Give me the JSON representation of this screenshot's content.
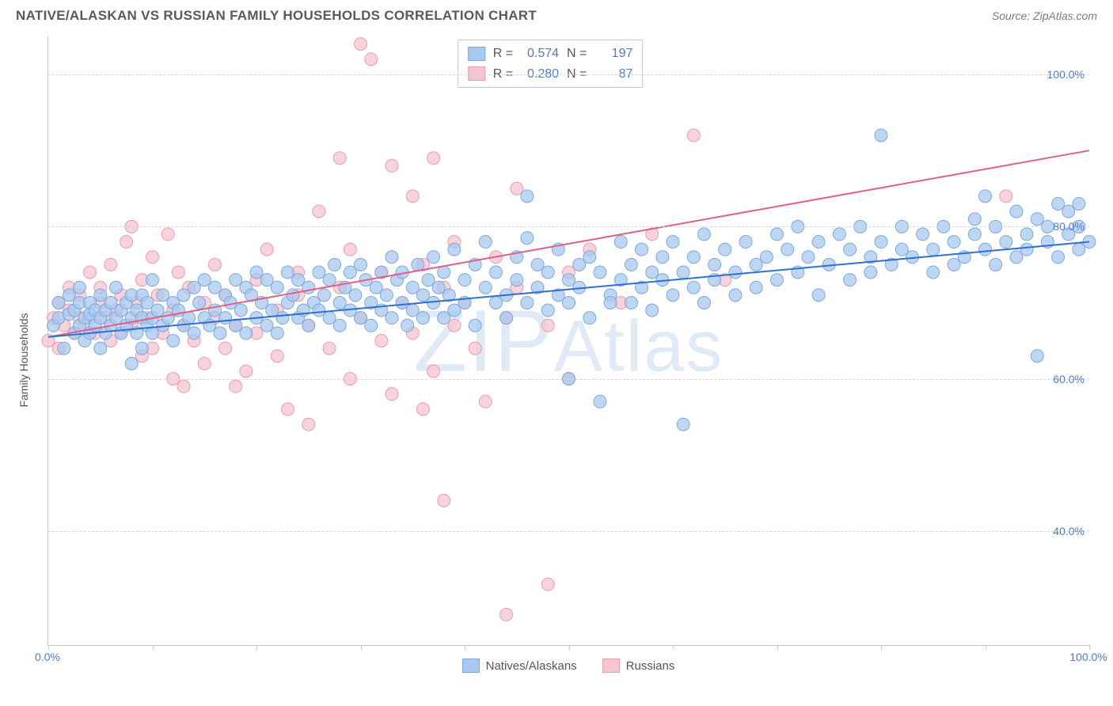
{
  "header": {
    "title": "NATIVE/ALASKAN VS RUSSIAN FAMILY HOUSEHOLDS CORRELATION CHART",
    "source": "Source: ZipAtlas.com"
  },
  "watermark": "ZIPAtlas",
  "axes": {
    "ylabel": "Family Households",
    "xmin": 0,
    "xmax": 100,
    "ymin": 25,
    "ymax": 105,
    "xticks": [
      0,
      10,
      20,
      30,
      40,
      50,
      60,
      70,
      80,
      90,
      100
    ],
    "xtick_labels": {
      "0": "0.0%",
      "100": "100.0%"
    },
    "yticks": [
      40,
      60,
      80,
      100
    ],
    "ytick_labels": {
      "40": "40.0%",
      "60": "60.0%",
      "80": "80.0%",
      "100": "100.0%"
    }
  },
  "series": {
    "blue": {
      "label": "Natives/Alaskans",
      "fill": "#a7c8f0",
      "stroke": "#7fa8d9",
      "line_color": "#2f6fd0",
      "R": "0.574",
      "N": "197",
      "trend": {
        "x1": 0,
        "y1": 65.5,
        "x2": 100,
        "y2": 78.0
      },
      "points": [
        [
          0.5,
          67
        ],
        [
          1,
          68
        ],
        [
          1,
          70
        ],
        [
          1.5,
          64
        ],
        [
          2,
          68.5
        ],
        [
          2,
          71
        ],
        [
          2.5,
          66
        ],
        [
          2.5,
          69
        ],
        [
          3,
          67
        ],
        [
          3,
          72
        ],
        [
          3,
          70
        ],
        [
          3.5,
          65
        ],
        [
          3.5,
          68
        ],
        [
          4,
          68.5
        ],
        [
          4,
          66
        ],
        [
          4,
          70
        ],
        [
          4.5,
          69
        ],
        [
          4.5,
          67
        ],
        [
          5,
          71
        ],
        [
          5,
          64
        ],
        [
          5,
          68
        ],
        [
          5.5,
          69
        ],
        [
          5.5,
          66
        ],
        [
          6,
          67
        ],
        [
          6,
          70
        ],
        [
          6.5,
          68
        ],
        [
          6.5,
          72
        ],
        [
          7,
          69
        ],
        [
          7,
          66
        ],
        [
          7.5,
          70
        ],
        [
          7.5,
          67
        ],
        [
          8,
          68
        ],
        [
          8,
          71
        ],
        [
          8,
          62
        ],
        [
          8.5,
          69
        ],
        [
          8.5,
          66
        ],
        [
          9,
          68
        ],
        [
          9,
          71
        ],
        [
          9,
          64
        ],
        [
          9.5,
          67
        ],
        [
          9.5,
          70
        ],
        [
          10,
          68
        ],
        [
          10,
          73
        ],
        [
          10,
          66
        ],
        [
          10.5,
          69
        ],
        [
          11,
          67
        ],
        [
          11,
          71
        ],
        [
          11.5,
          68
        ],
        [
          12,
          70
        ],
        [
          12,
          65
        ],
        [
          12.5,
          69
        ],
        [
          13,
          71
        ],
        [
          13,
          67
        ],
        [
          13.5,
          68
        ],
        [
          14,
          72
        ],
        [
          14,
          66
        ],
        [
          14.5,
          70
        ],
        [
          15,
          68
        ],
        [
          15,
          73
        ],
        [
          15.5,
          67
        ],
        [
          16,
          69
        ],
        [
          16,
          72
        ],
        [
          16.5,
          66
        ],
        [
          17,
          71
        ],
        [
          17,
          68
        ],
        [
          17.5,
          70
        ],
        [
          18,
          73
        ],
        [
          18,
          67
        ],
        [
          18.5,
          69
        ],
        [
          19,
          72
        ],
        [
          19,
          66
        ],
        [
          19.5,
          71
        ],
        [
          20,
          68
        ],
        [
          20,
          74
        ],
        [
          20.5,
          70
        ],
        [
          21,
          67
        ],
        [
          21,
          73
        ],
        [
          21.5,
          69
        ],
        [
          22,
          72
        ],
        [
          22,
          66
        ],
        [
          22.5,
          68
        ],
        [
          23,
          74
        ],
        [
          23,
          70
        ],
        [
          23.5,
          71
        ],
        [
          24,
          68
        ],
        [
          24,
          73
        ],
        [
          24.5,
          69
        ],
        [
          25,
          72
        ],
        [
          25,
          67
        ],
        [
          25.5,
          70
        ],
        [
          26,
          74
        ],
        [
          26,
          69
        ],
        [
          26.5,
          71
        ],
        [
          27,
          68
        ],
        [
          27,
          73
        ],
        [
          27.5,
          75
        ],
        [
          28,
          70
        ],
        [
          28,
          67
        ],
        [
          28.5,
          72
        ],
        [
          29,
          69
        ],
        [
          29,
          74
        ],
        [
          29.5,
          71
        ],
        [
          30,
          68
        ],
        [
          30,
          75
        ],
        [
          30.5,
          73
        ],
        [
          31,
          70
        ],
        [
          31,
          67
        ],
        [
          31.5,
          72
        ],
        [
          32,
          74
        ],
        [
          32,
          69
        ],
        [
          32.5,
          71
        ],
        [
          33,
          68
        ],
        [
          33,
          76
        ],
        [
          33.5,
          73
        ],
        [
          34,
          70
        ],
        [
          34,
          74
        ],
        [
          34.5,
          67
        ],
        [
          35,
          72
        ],
        [
          35,
          69
        ],
        [
          35.5,
          75
        ],
        [
          36,
          71
        ],
        [
          36,
          68
        ],
        [
          36.5,
          73
        ],
        [
          37,
          70
        ],
        [
          37,
          76
        ],
        [
          37.5,
          72
        ],
        [
          38,
          68
        ],
        [
          38,
          74
        ],
        [
          38.5,
          71
        ],
        [
          39,
          77
        ],
        [
          39,
          69
        ],
        [
          40,
          73
        ],
        [
          40,
          70
        ],
        [
          41,
          75
        ],
        [
          41,
          67
        ],
        [
          42,
          72
        ],
        [
          42,
          78
        ],
        [
          43,
          70
        ],
        [
          43,
          74
        ],
        [
          44,
          71
        ],
        [
          44,
          68
        ],
        [
          45,
          73
        ],
        [
          45,
          76
        ],
        [
          46,
          70
        ],
        [
          46,
          78.5
        ],
        [
          46,
          84
        ],
        [
          47,
          72
        ],
        [
          47,
          75
        ],
        [
          48,
          69
        ],
        [
          48,
          74
        ],
        [
          49,
          71
        ],
        [
          49,
          77
        ],
        [
          50,
          73
        ],
        [
          50,
          60
        ],
        [
          50,
          70
        ],
        [
          51,
          75
        ],
        [
          51,
          72
        ],
        [
          52,
          68
        ],
        [
          52,
          76
        ],
        [
          53,
          74
        ],
        [
          53,
          57
        ],
        [
          54,
          71
        ],
        [
          54,
          70
        ],
        [
          55,
          78
        ],
        [
          55,
          73
        ],
        [
          56,
          75
        ],
        [
          56,
          70
        ],
        [
          57,
          72
        ],
        [
          57,
          77
        ],
        [
          58,
          74
        ],
        [
          58,
          69
        ],
        [
          59,
          76
        ],
        [
          59,
          73
        ],
        [
          60,
          71
        ],
        [
          60,
          78
        ],
        [
          61,
          54
        ],
        [
          61,
          74
        ],
        [
          62,
          76
        ],
        [
          62,
          72
        ],
        [
          63,
          79
        ],
        [
          63,
          70
        ],
        [
          64,
          75
        ],
        [
          64,
          73
        ],
        [
          65,
          77
        ],
        [
          66,
          74
        ],
        [
          66,
          71
        ],
        [
          67,
          78
        ],
        [
          68,
          75
        ],
        [
          68,
          72
        ],
        [
          69,
          76
        ],
        [
          70,
          79
        ],
        [
          70,
          73
        ],
        [
          71,
          77
        ],
        [
          72,
          74
        ],
        [
          72,
          80
        ],
        [
          73,
          76
        ],
        [
          74,
          78
        ],
        [
          74,
          71
        ],
        [
          75,
          75
        ],
        [
          76,
          79
        ],
        [
          77,
          73
        ],
        [
          77,
          77
        ],
        [
          78,
          80
        ],
        [
          79,
          76
        ],
        [
          79,
          74
        ],
        [
          80,
          78
        ],
        [
          80,
          92
        ],
        [
          81,
          75
        ],
        [
          82,
          77
        ],
        [
          82,
          80
        ],
        [
          83,
          76
        ],
        [
          84,
          79
        ],
        [
          85,
          77
        ],
        [
          85,
          74
        ],
        [
          86,
          80
        ],
        [
          87,
          78
        ],
        [
          87,
          75
        ],
        [
          88,
          76
        ],
        [
          89,
          79
        ],
        [
          89,
          81
        ],
        [
          90,
          77
        ],
        [
          90,
          84
        ],
        [
          91,
          75
        ],
        [
          91,
          80
        ],
        [
          92,
          78
        ],
        [
          93,
          82
        ],
        [
          93,
          76
        ],
        [
          94,
          79
        ],
        [
          94,
          77
        ],
        [
          95,
          81
        ],
        [
          95,
          63
        ],
        [
          96,
          78
        ],
        [
          96,
          80
        ],
        [
          97,
          83
        ],
        [
          97,
          76
        ],
        [
          98,
          79
        ],
        [
          98,
          82
        ],
        [
          99,
          80
        ],
        [
          99,
          77
        ],
        [
          99,
          83
        ],
        [
          100,
          78
        ]
      ]
    },
    "pink": {
      "label": "Russians",
      "fill": "#f7c4cf",
      "stroke": "#e99cae",
      "line_color": "#e15f87",
      "R": "0.280",
      "N": "87",
      "trend": {
        "x1": 0,
        "y1": 65.5,
        "x2": 100,
        "y2": 90.0
      },
      "points": [
        [
          0,
          65
        ],
        [
          0.5,
          68
        ],
        [
          1,
          70
        ],
        [
          1,
          64
        ],
        [
          1.5,
          67
        ],
        [
          2,
          69
        ],
        [
          2,
          72
        ],
        [
          2.5,
          66
        ],
        [
          3,
          71
        ],
        [
          3,
          68
        ],
        [
          3.5,
          67
        ],
        [
          4,
          74
        ],
        [
          4,
          68
        ],
        [
          4.5,
          66
        ],
        [
          5,
          72
        ],
        [
          5,
          70
        ],
        [
          5.5,
          68
        ],
        [
          6,
          75
        ],
        [
          6,
          65
        ],
        [
          6.5,
          69
        ],
        [
          7,
          71
        ],
        [
          7,
          66
        ],
        [
          7.5,
          78
        ],
        [
          8,
          80
        ],
        [
          8,
          67
        ],
        [
          8.5,
          70
        ],
        [
          9,
          73
        ],
        [
          9,
          63
        ],
        [
          9.5,
          68
        ],
        [
          10,
          76
        ],
        [
          10,
          64
        ],
        [
          10.5,
          71
        ],
        [
          11,
          66
        ],
        [
          11.5,
          79
        ],
        [
          12,
          60
        ],
        [
          12,
          69
        ],
        [
          12.5,
          74
        ],
        [
          13,
          67
        ],
        [
          13,
          59
        ],
        [
          13.5,
          72
        ],
        [
          14,
          65
        ],
        [
          15,
          70
        ],
        [
          15,
          62
        ],
        [
          16,
          68
        ],
        [
          16,
          75
        ],
        [
          17,
          64
        ],
        [
          17,
          71
        ],
        [
          18,
          59
        ],
        [
          18,
          67
        ],
        [
          19,
          61
        ],
        [
          20,
          73
        ],
        [
          20,
          66
        ],
        [
          21,
          77
        ],
        [
          22,
          63
        ],
        [
          22,
          69
        ],
        [
          23,
          56
        ],
        [
          24,
          71
        ],
        [
          24,
          74
        ],
        [
          25,
          54
        ],
        [
          25,
          67
        ],
        [
          26,
          82
        ],
        [
          27,
          64
        ],
        [
          28,
          72
        ],
        [
          28,
          89
        ],
        [
          29,
          60
        ],
        [
          29,
          77
        ],
        [
          30,
          68
        ],
        [
          30,
          104
        ],
        [
          31,
          102
        ],
        [
          32,
          65
        ],
        [
          32,
          74
        ],
        [
          33,
          88
        ],
        [
          33,
          58
        ],
        [
          34,
          70
        ],
        [
          35,
          84
        ],
        [
          35,
          66
        ],
        [
          36,
          75
        ],
        [
          36,
          56
        ],
        [
          37,
          61
        ],
        [
          37,
          89
        ],
        [
          38,
          72
        ],
        [
          38,
          44
        ],
        [
          39,
          67
        ],
        [
          39,
          78
        ],
        [
          40,
          70
        ],
        [
          41,
          64
        ],
        [
          42,
          57
        ],
        [
          43,
          76
        ],
        [
          44,
          29
        ],
        [
          44,
          68
        ],
        [
          45,
          72
        ],
        [
          45,
          85
        ],
        [
          48,
          67
        ],
        [
          48,
          33
        ],
        [
          50,
          74
        ],
        [
          50,
          60
        ],
        [
          52,
          77
        ],
        [
          55,
          70
        ],
        [
          58,
          79
        ],
        [
          62,
          92
        ],
        [
          65,
          73
        ],
        [
          92,
          84
        ]
      ]
    }
  },
  "style": {
    "background": "#ffffff",
    "grid_color": "#d6d6d6",
    "axis_color": "#c9c9c9",
    "tick_label_color": "#4b7bd4",
    "text_color": "#555555",
    "marker_radius": 8,
    "marker_opacity": 0.75,
    "line_width": 2,
    "title_fontsize": 17,
    "axis_fontsize": 14
  },
  "legend": {
    "items": [
      {
        "key": "blue",
        "label": "Natives/Alaskans"
      },
      {
        "key": "pink",
        "label": "Russians"
      }
    ]
  }
}
